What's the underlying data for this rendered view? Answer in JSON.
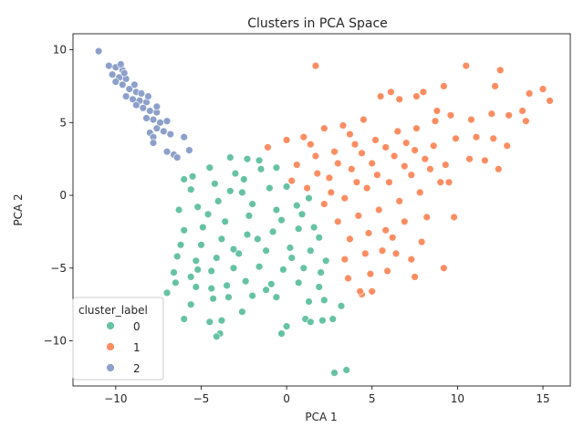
{
  "chart_data": {
    "type": "scatter",
    "title": "Clusters in PCA Space",
    "xlabel": "PCA 1",
    "ylabel": "PCA 2",
    "xlim": [
      -12.5,
      16.6
    ],
    "ylim": [
      -13.1,
      11.1
    ],
    "xticks": [
      -10,
      -5,
      0,
      5,
      10,
      15
    ],
    "yticks": [
      -10,
      -5,
      0,
      5,
      10
    ],
    "grid": false,
    "legend": {
      "title": "cluster_label",
      "placement": "lower-left"
    },
    "series": [
      {
        "name": "0",
        "color": "#66c2a5",
        "points": [
          [
            -6.0,
            1.1
          ],
          [
            -5.5,
            1.3
          ],
          [
            -4.5,
            1.9
          ],
          [
            -3.3,
            2.6
          ],
          [
            -2.3,
            2.5
          ],
          [
            -1.6,
            2.4
          ],
          [
            -5.6,
            0.4
          ],
          [
            -4.2,
            0.8
          ],
          [
            -3.0,
            1.5
          ],
          [
            -1.5,
            1.8
          ],
          [
            -0.6,
            1.9
          ],
          [
            -6.3,
            -1.0
          ],
          [
            -5.2,
            -0.8
          ],
          [
            -4.0,
            -0.4
          ],
          [
            -2.6,
            0.2
          ],
          [
            -1.0,
            0.5
          ],
          [
            0.0,
            0.6
          ],
          [
            -6.0,
            -2.4
          ],
          [
            -4.9,
            -2.2
          ],
          [
            -3.6,
            -1.8
          ],
          [
            -2.2,
            -1.4
          ],
          [
            -0.6,
            -1.0
          ],
          [
            0.6,
            -0.7
          ],
          [
            1.3,
            -0.2
          ],
          [
            -6.2,
            -3.4
          ],
          [
            -5.0,
            -3.4
          ],
          [
            -3.8,
            -3.0
          ],
          [
            -2.3,
            -2.7
          ],
          [
            -0.8,
            -2.5
          ],
          [
            0.7,
            -2.3
          ],
          [
            1.6,
            -2.2
          ],
          [
            -6.4,
            -4.2
          ],
          [
            -5.3,
            -4.5
          ],
          [
            -4.1,
            -4.3
          ],
          [
            -2.8,
            -4.0
          ],
          [
            -1.2,
            -3.8
          ],
          [
            0.2,
            -3.6
          ],
          [
            1.4,
            -3.8
          ],
          [
            2.3,
            -4.5
          ],
          [
            -6.6,
            -5.3
          ],
          [
            -5.6,
            -5.6
          ],
          [
            -4.4,
            -5.2
          ],
          [
            -3.1,
            -5.0
          ],
          [
            -1.6,
            -4.9
          ],
          [
            -0.2,
            -5.1
          ],
          [
            1.0,
            -5.0
          ],
          [
            2.0,
            -5.3
          ],
          [
            -6.5,
            -6.0
          ],
          [
            -5.3,
            -6.3
          ],
          [
            -4.4,
            -6.4
          ],
          [
            -3.5,
            -6.2
          ],
          [
            -2.4,
            -5.9
          ],
          [
            -0.9,
            -6.1
          ],
          [
            0.7,
            -6.0
          ],
          [
            1.9,
            -6.3
          ],
          [
            -7.0,
            -6.7
          ],
          [
            -5.6,
            -7.5
          ],
          [
            -4.3,
            -7.1
          ],
          [
            -3.4,
            -7.0
          ],
          [
            -2.0,
            -6.9
          ],
          [
            -0.6,
            -7.0
          ],
          [
            1.3,
            -7.3
          ],
          [
            2.2,
            -7.2
          ],
          [
            -6.0,
            -8.5
          ],
          [
            -4.5,
            -8.7
          ],
          [
            -3.8,
            -8.6
          ],
          [
            -2.6,
            -8.0
          ],
          [
            2.1,
            -8.6
          ],
          [
            3.2,
            -7.6
          ],
          [
            -3.9,
            -9.5
          ],
          [
            -4.1,
            -9.7
          ],
          [
            0.0,
            -9.0
          ],
          [
            -0.3,
            -9.5
          ],
          [
            1.1,
            -8.5
          ],
          [
            1.4,
            -8.7
          ],
          [
            2.7,
            -8.5
          ],
          [
            3.5,
            -12.0
          ],
          [
            2.8,
            -12.2
          ],
          [
            -3.3,
            0.3
          ],
          [
            -2.0,
            -0.6
          ],
          [
            -0.3,
            -1.7
          ],
          [
            0.9,
            -1.3
          ],
          [
            -4.6,
            -1.3
          ],
          [
            -1.7,
            -3.0
          ],
          [
            -3.1,
            -3.7
          ],
          [
            0.3,
            -4.3
          ],
          [
            1.9,
            -2.9
          ],
          [
            -2.5,
            1.1
          ],
          [
            -5.2,
            -5.1
          ],
          [
            -1.2,
            -6.5
          ]
        ]
      },
      {
        "name": "1",
        "color": "#fc8d62",
        "points": [
          [
            -1.1,
            3.3
          ],
          [
            0.0,
            3.8
          ],
          [
            1.0,
            4.0
          ],
          [
            2.2,
            4.6
          ],
          [
            3.3,
            4.8
          ],
          [
            4.5,
            5.2
          ],
          [
            5.5,
            6.8
          ],
          [
            6.1,
            7.1
          ],
          [
            6.6,
            6.6
          ],
          [
            7.6,
            6.8
          ],
          [
            8.0,
            7.1
          ],
          [
            9.2,
            7.5
          ],
          [
            10.5,
            8.9
          ],
          [
            12.2,
            7.5
          ],
          [
            12.5,
            8.6
          ],
          [
            14.2,
            7.0
          ],
          [
            15.0,
            7.3
          ],
          [
            15.4,
            6.5
          ],
          [
            1.7,
            8.9
          ],
          [
            0.6,
            2.1
          ],
          [
            1.7,
            2.7
          ],
          [
            2.8,
            3.0
          ],
          [
            4.0,
            3.5
          ],
          [
            5.2,
            3.8
          ],
          [
            6.5,
            4.4
          ],
          [
            7.6,
            4.6
          ],
          [
            8.7,
            5.1
          ],
          [
            9.6,
            5.5
          ],
          [
            10.8,
            5.2
          ],
          [
            12.0,
            5.6
          ],
          [
            13.0,
            5.5
          ],
          [
            13.8,
            5.8
          ],
          [
            14.0,
            5.1
          ],
          [
            1.2,
            0.5
          ],
          [
            2.5,
            1.2
          ],
          [
            3.8,
            1.8
          ],
          [
            5.0,
            2.2
          ],
          [
            6.3,
            2.7
          ],
          [
            7.5,
            3.1
          ],
          [
            8.6,
            3.4
          ],
          [
            9.9,
            3.9
          ],
          [
            11.1,
            4.0
          ],
          [
            12.1,
            3.9
          ],
          [
            12.9,
            3.4
          ],
          [
            11.6,
            2.4
          ],
          [
            12.4,
            1.8
          ],
          [
            10.7,
            2.5
          ],
          [
            2.2,
            -0.6
          ],
          [
            3.4,
            -0.2
          ],
          [
            4.7,
            0.5
          ],
          [
            6.0,
            0.9
          ],
          [
            7.3,
            1.4
          ],
          [
            8.4,
            1.8
          ],
          [
            9.3,
            2.1
          ],
          [
            9.5,
            0.9
          ],
          [
            3.0,
            -1.8
          ],
          [
            4.2,
            -1.4
          ],
          [
            5.4,
            -1.0
          ],
          [
            6.6,
            -0.4
          ],
          [
            7.8,
            0.2
          ],
          [
            9.0,
            0.9
          ],
          [
            3.7,
            -3.0
          ],
          [
            4.8,
            -2.6
          ],
          [
            5.8,
            -2.4
          ],
          [
            6.9,
            -1.8
          ],
          [
            8.2,
            -1.5
          ],
          [
            9.8,
            -1.5
          ],
          [
            3.4,
            -4.4
          ],
          [
            4.6,
            -4.0
          ],
          [
            5.6,
            -3.8
          ],
          [
            6.4,
            -4.0
          ],
          [
            7.3,
            -4.4
          ],
          [
            3.6,
            -5.7
          ],
          [
            4.9,
            -5.4
          ],
          [
            5.9,
            -5.2
          ],
          [
            7.5,
            -5.6
          ],
          [
            9.2,
            -5.0
          ],
          [
            4.4,
            -6.8
          ],
          [
            5.0,
            -6.6
          ],
          [
            4.3,
            -6.6
          ],
          [
            1.8,
            1.5
          ],
          [
            3.0,
            2.2
          ],
          [
            4.4,
            2.9
          ],
          [
            5.8,
            3.3
          ],
          [
            7.0,
            3.6
          ],
          [
            2.6,
            0.2
          ],
          [
            4.1,
            0.9
          ],
          [
            5.3,
            1.4
          ],
          [
            6.9,
            2.0
          ],
          [
            8.1,
            2.5
          ],
          [
            0.3,
            1.0
          ],
          [
            1.4,
            3.5
          ],
          [
            3.7,
            4.2
          ],
          [
            8.8,
            5.8
          ],
          [
            6.2,
            -2.9
          ],
          [
            7.9,
            -3.2
          ]
        ]
      },
      {
        "name": "2",
        "color": "#8da0cb",
        "points": [
          [
            -11.0,
            9.9
          ],
          [
            -10.4,
            8.9
          ],
          [
            -10.0,
            8.8
          ],
          [
            -9.6,
            8.6
          ],
          [
            -10.2,
            8.3
          ],
          [
            -9.8,
            8.1
          ],
          [
            -9.4,
            8.0
          ],
          [
            -10.0,
            7.8
          ],
          [
            -9.6,
            7.6
          ],
          [
            -9.2,
            7.3
          ],
          [
            -8.8,
            7.1
          ],
          [
            -9.4,
            6.8
          ],
          [
            -9.0,
            6.6
          ],
          [
            -8.6,
            6.5
          ],
          [
            -8.2,
            6.4
          ],
          [
            -8.8,
            6.2
          ],
          [
            -8.4,
            6.0
          ],
          [
            -8.0,
            5.8
          ],
          [
            -7.6,
            5.7
          ],
          [
            -8.2,
            5.3
          ],
          [
            -7.8,
            5.2
          ],
          [
            -7.4,
            5.0
          ],
          [
            -7.0,
            5.1
          ],
          [
            -7.6,
            4.6
          ],
          [
            -7.2,
            4.4
          ],
          [
            -8.0,
            4.3
          ],
          [
            -7.8,
            4.0
          ],
          [
            -6.8,
            4.2
          ],
          [
            -6.0,
            4.0
          ],
          [
            -5.7,
            3.1
          ],
          [
            -7.0,
            3.0
          ],
          [
            -6.6,
            2.8
          ],
          [
            -6.4,
            2.6
          ],
          [
            -7.8,
            3.6
          ],
          [
            -9.7,
            9.0
          ],
          [
            -9.5,
            8.4
          ],
          [
            -8.9,
            7.6
          ],
          [
            -8.5,
            7.0
          ],
          [
            -8.1,
            6.8
          ],
          [
            -7.6,
            6.1
          ]
        ]
      }
    ]
  }
}
